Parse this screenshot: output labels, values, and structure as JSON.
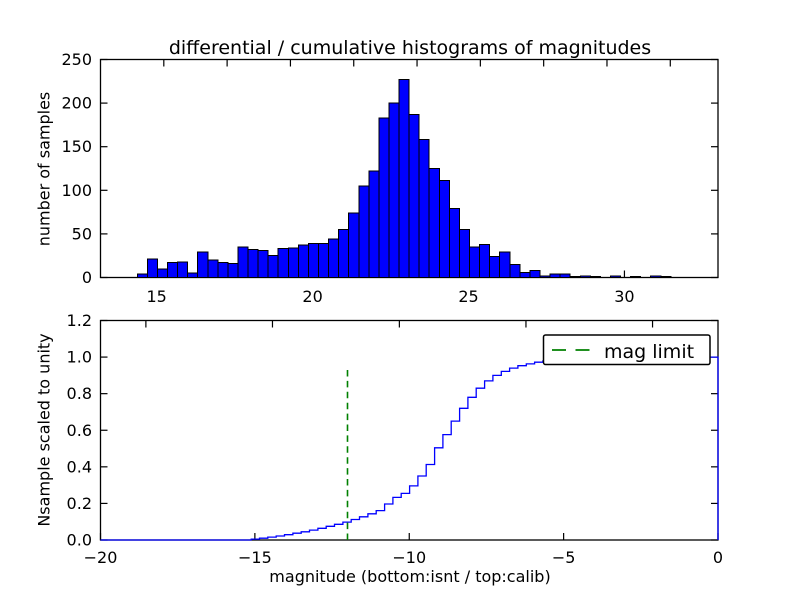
{
  "figure": {
    "background": "#ffffff",
    "title": "differential / cumulative histograms of magnitudes"
  },
  "colors": {
    "hist_fill": "#0000ff",
    "hist_edge": "#000000",
    "cumulative_line": "#0000ff",
    "mag_limit_green": "#008000",
    "axis": "#000000"
  },
  "chart_data": [
    {
      "type": "bar",
      "name": "differential-histogram",
      "title": "differential / cumulative histograms of magnitudes",
      "ylabel": "number of samples",
      "xlim": [
        13.2,
        33.0
      ],
      "ylim": [
        0,
        250
      ],
      "grid": false,
      "xticks": [
        15,
        20,
        25,
        30
      ],
      "xtick_labels": [
        "15",
        "20",
        "25",
        "30"
      ],
      "yticks": [
        0,
        50,
        100,
        150,
        200,
        250
      ],
      "ytick_labels": [
        "0",
        "50",
        "100",
        "150",
        "200",
        "250"
      ],
      "top_edge_tick_xs": [
        15.23,
        17.26,
        19.29,
        21.32,
        23.35,
        25.38,
        27.41,
        29.44,
        31.47
      ],
      "bins": {
        "start": 14.38,
        "width": 0.3228
      },
      "counts": [
        4,
        21,
        10,
        17,
        18,
        5,
        29,
        20,
        17,
        16,
        35,
        32,
        31,
        25,
        33,
        34,
        37,
        39,
        39,
        44,
        55,
        74,
        105,
        122,
        183,
        200,
        227,
        187,
        158,
        125,
        111,
        79,
        55,
        35,
        38,
        24,
        29,
        15,
        6,
        8,
        2,
        4,
        4,
        1,
        2,
        1,
        0,
        2,
        0,
        1,
        0,
        2,
        1
      ]
    },
    {
      "type": "line",
      "name": "cumulative-histogram",
      "ylabel": "Nsample scaled to unity",
      "xlabel": "magnitude (bottom:isnt / top:calib)",
      "xlim": [
        -20,
        0
      ],
      "ylim": [
        0,
        1.2
      ],
      "grid": false,
      "xticks": [
        -20,
        -15,
        -10,
        -5,
        0
      ],
      "xtick_labels": [
        "−20",
        "−15",
        "−10",
        "−5",
        "0"
      ],
      "yticks": [
        0,
        0.2,
        0.4,
        0.6,
        0.8,
        1.0,
        1.2
      ],
      "ytick_labels": [
        "0.0",
        "0.2",
        "0.4",
        "0.6",
        "0.8",
        "1.0",
        "1.2"
      ],
      "top_edge_tick_xs": [
        -18.53,
        -14.43,
        -10.32,
        -6.22,
        -2.12
      ],
      "steps": {
        "x_start": -15.12,
        "step": 0.27,
        "values": [
          0.005,
          0.01,
          0.016,
          0.022,
          0.029,
          0.037,
          0.045,
          0.054,
          0.064,
          0.075,
          0.086,
          0.098,
          0.112,
          0.127,
          0.143,
          0.161,
          0.197,
          0.233,
          0.255,
          0.296,
          0.35,
          0.413,
          0.504,
          0.576,
          0.65,
          0.72,
          0.78,
          0.83,
          0.87,
          0.9,
          0.922,
          0.94,
          0.953,
          0.963,
          0.972,
          0.979,
          0.985,
          0.99,
          0.994,
          0.997,
          0.999,
          1.0
        ]
      },
      "flat_end_value": 1.0,
      "mag_limit_line": {
        "x": -12,
        "y_top": 0.95,
        "color": "#008000",
        "style": "dashed"
      },
      "legend": {
        "label": "mag limit",
        "position": "upper right"
      }
    }
  ]
}
